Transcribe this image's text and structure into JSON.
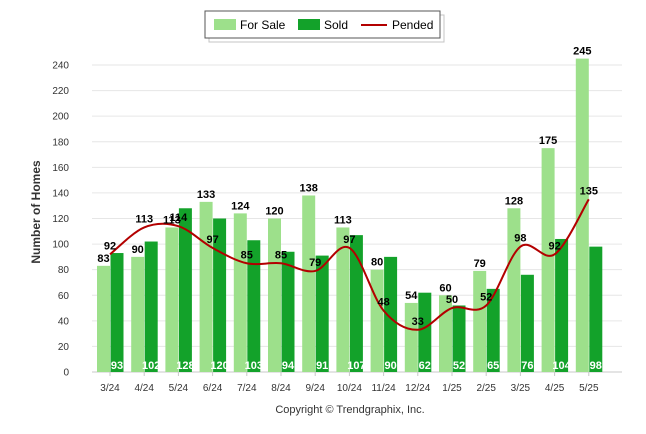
{
  "chart_data": {
    "type": "bar",
    "categories": [
      "3/24",
      "4/24",
      "5/24",
      "6/24",
      "7/24",
      "8/24",
      "9/24",
      "10/24",
      "11/24",
      "12/24",
      "1/25",
      "2/25",
      "3/25",
      "4/25",
      "5/25"
    ],
    "series": [
      {
        "name": "For Sale",
        "type": "bar",
        "color": "#9de08b",
        "values": [
          83,
          90,
          113,
          133,
          124,
          120,
          138,
          113,
          80,
          54,
          60,
          79,
          128,
          175,
          245
        ]
      },
      {
        "name": "Sold",
        "type": "bar",
        "color": "#13a22a",
        "values": [
          93,
          102,
          128,
          120,
          103,
          94,
          91,
          107,
          90,
          62,
          52,
          65,
          76,
          104,
          98
        ]
      },
      {
        "name": "Pended",
        "type": "line",
        "color": "#b30000",
        "values": [
          92,
          113,
          114,
          97,
          85,
          85,
          79,
          97,
          48,
          33,
          50,
          52,
          98,
          92,
          135
        ]
      }
    ],
    "ylabel": "Number of Homes",
    "xlabel": "",
    "ylim": [
      0,
      250
    ],
    "yticks": [
      0,
      20,
      40,
      60,
      80,
      100,
      120,
      140,
      160,
      180,
      200,
      220,
      240
    ],
    "grid": true,
    "legend": "top-center"
  },
  "footer": {
    "credit": "Copyright © Trendgraphix, Inc."
  }
}
